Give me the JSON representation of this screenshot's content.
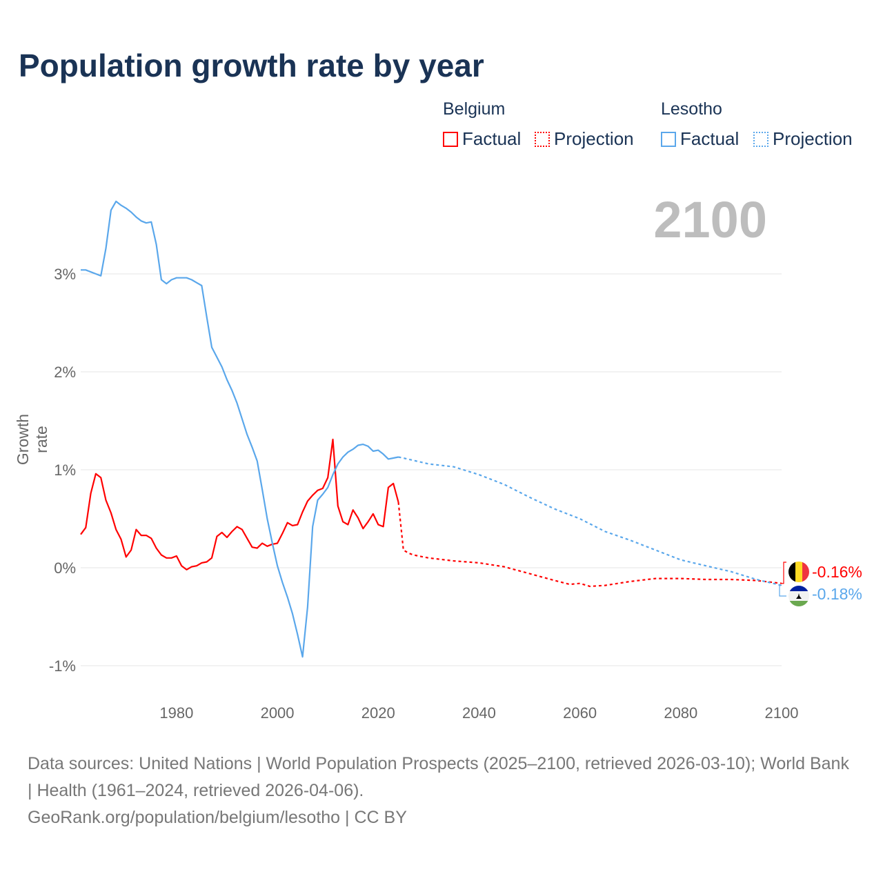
{
  "title": "Population growth rate by year",
  "current_year": "2100",
  "legend": {
    "groups": [
      {
        "name": "Belgium",
        "factual": "Factual",
        "projection": "Projection",
        "color": "#ff0000"
      },
      {
        "name": "Lesotho",
        "factual": "Factual",
        "projection": "Projection",
        "color": "#5aa7eb"
      }
    ]
  },
  "footer": {
    "sources": "Data sources: United Nations | World Population Prospects (2025–2100, retrieved 2026-03-10); World Bank | Health (1961–2024, retrieved 2026-04-06).",
    "credit": "GeoRank.org/population/belgium/lesotho | CC BY"
  },
  "chart_data": {
    "type": "line",
    "title": "Population growth rate by year",
    "xlabel": "",
    "ylabel": "Growth rate",
    "xlim": [
      1961,
      2100
    ],
    "ylim": [
      -1.15,
      3.9
    ],
    "x_ticks": [
      1980,
      2000,
      2020,
      2040,
      2060,
      2080,
      2100
    ],
    "y_ticks": [
      -1,
      0,
      1,
      2,
      3
    ],
    "y_tick_labels": [
      "-1%",
      "0%",
      "1%",
      "2%",
      "3%"
    ],
    "grid": "horizontal",
    "legend_position": "top-right",
    "series": [
      {
        "name": "Belgium",
        "color": "#ff0000",
        "end_label": "-0.16%",
        "factual": {
          "x": [
            1961,
            1962,
            1963,
            1964,
            1965,
            1966,
            1967,
            1968,
            1969,
            1970,
            1971,
            1972,
            1973,
            1974,
            1975,
            1976,
            1977,
            1978,
            1979,
            1980,
            1981,
            1982,
            1983,
            1984,
            1985,
            1986,
            1987,
            1988,
            1989,
            1990,
            1991,
            1992,
            1993,
            1994,
            1995,
            1996,
            1997,
            1998,
            1999,
            2000,
            2001,
            2002,
            2003,
            2004,
            2005,
            2006,
            2007,
            2008,
            2009,
            2010,
            2011,
            2012,
            2013,
            2014,
            2015,
            2016,
            2017,
            2018,
            2019,
            2020,
            2021,
            2022,
            2023,
            2024
          ],
          "y": [
            0.34,
            0.41,
            0.76,
            0.96,
            0.92,
            0.69,
            0.56,
            0.39,
            0.29,
            0.11,
            0.18,
            0.39,
            0.33,
            0.33,
            0.3,
            0.2,
            0.13,
            0.1,
            0.1,
            0.12,
            0.02,
            -0.02,
            0.01,
            0.02,
            0.05,
            0.06,
            0.1,
            0.32,
            0.36,
            0.31,
            0.37,
            0.42,
            0.39,
            0.3,
            0.21,
            0.2,
            0.25,
            0.22,
            0.24,
            0.25,
            0.35,
            0.46,
            0.43,
            0.44,
            0.57,
            0.68,
            0.74,
            0.79,
            0.81,
            0.92,
            1.31,
            0.63,
            0.47,
            0.44,
            0.59,
            0.51,
            0.4,
            0.47,
            0.55,
            0.44,
            0.42,
            0.82,
            0.86,
            0.67
          ]
        },
        "projection": {
          "x": [
            2024,
            2025,
            2026,
            2027,
            2030,
            2035,
            2040,
            2045,
            2050,
            2055,
            2058,
            2060,
            2062,
            2065,
            2070,
            2075,
            2080,
            2085,
            2090,
            2095,
            2100
          ],
          "y": [
            0.67,
            0.18,
            0.15,
            0.13,
            0.1,
            0.07,
            0.05,
            0.01,
            -0.06,
            -0.13,
            -0.17,
            -0.16,
            -0.19,
            -0.18,
            -0.14,
            -0.11,
            -0.11,
            -0.12,
            -0.12,
            -0.13,
            -0.16
          ]
        }
      },
      {
        "name": "Lesotho",
        "color": "#5aa7eb",
        "end_label": "-0.18%",
        "factual": {
          "x": [
            1961,
            1962,
            1963,
            1964,
            1965,
            1966,
            1967,
            1968,
            1969,
            1970,
            1971,
            1972,
            1973,
            1974,
            1975,
            1976,
            1977,
            1978,
            1979,
            1980,
            1981,
            1982,
            1983,
            1984,
            1985,
            1986,
            1987,
            1988,
            1989,
            1990,
            1991,
            1992,
            1993,
            1994,
            1995,
            1996,
            1997,
            1998,
            1999,
            2000,
            2001,
            2002,
            2003,
            2004,
            2005,
            2006,
            2007,
            2008,
            2009,
            2010,
            2011,
            2012,
            2013,
            2014,
            2015,
            2016,
            2017,
            2018,
            2019,
            2020,
            2021,
            2022,
            2023,
            2024
          ],
          "y": [
            3.04,
            3.04,
            3.02,
            3.0,
            2.98,
            3.26,
            3.65,
            3.74,
            3.7,
            3.67,
            3.63,
            3.58,
            3.54,
            3.52,
            3.53,
            3.3,
            2.94,
            2.9,
            2.94,
            2.96,
            2.96,
            2.96,
            2.94,
            2.91,
            2.88,
            2.56,
            2.25,
            2.15,
            2.05,
            1.92,
            1.81,
            1.68,
            1.52,
            1.36,
            1.23,
            1.09,
            0.8,
            0.5,
            0.25,
            0.02,
            -0.15,
            -0.3,
            -0.47,
            -0.68,
            -0.91,
            -0.4,
            0.42,
            0.69,
            0.75,
            0.82,
            0.95,
            1.06,
            1.13,
            1.18,
            1.21,
            1.25,
            1.26,
            1.24,
            1.19,
            1.2,
            1.16,
            1.11,
            1.12,
            1.13
          ]
        },
        "projection": {
          "x": [
            2024,
            2025,
            2030,
            2035,
            2040,
            2045,
            2050,
            2055,
            2060,
            2065,
            2070,
            2075,
            2080,
            2085,
            2090,
            2095,
            2100
          ],
          "y": [
            1.13,
            1.12,
            1.06,
            1.03,
            0.95,
            0.85,
            0.72,
            0.6,
            0.5,
            0.37,
            0.28,
            0.18,
            0.08,
            0.02,
            -0.04,
            -0.12,
            -0.18
          ]
        }
      }
    ]
  }
}
